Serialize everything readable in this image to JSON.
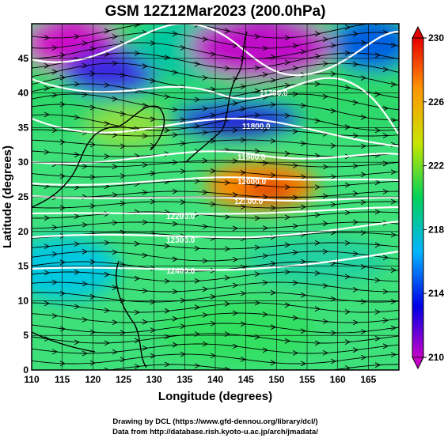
{
  "title": "GSM 12Z12Mar2023 (200.0hPa)",
  "x_axis": {
    "label": "Longitude (degrees)",
    "range": [
      110,
      170
    ],
    "ticks": [
      110,
      115,
      120,
      125,
      130,
      135,
      140,
      145,
      150,
      155,
      160,
      165
    ]
  },
  "y_axis": {
    "label": "Latitude (degrees)",
    "range": [
      0,
      50
    ],
    "ticks": [
      0,
      5,
      10,
      15,
      20,
      25,
      30,
      35,
      40,
      45
    ]
  },
  "colorbar": {
    "range": [
      210,
      230
    ],
    "labels": [
      210,
      214,
      218,
      222,
      226,
      230
    ],
    "colors": [
      "#c800c8",
      "#0000e6",
      "#00b4ff",
      "#00d25a",
      "#c8e600",
      "#ff9600",
      "#e60000"
    ]
  },
  "contours": [
    {
      "label": "11700.0"
    },
    {
      "label": "11800.0"
    },
    {
      "label": "11900.0"
    },
    {
      "label": "12000.0"
    },
    {
      "label": "12100.0"
    },
    {
      "label": "12200.0"
    },
    {
      "label": "12300.0"
    },
    {
      "label": "12400.0"
    }
  ],
  "credits": {
    "line1": "Drawing by DCL (https://www.gfd-dennou.org/library/dcl/)",
    "line2": "Data from http://database.rish.kyoto-u.ac.jp/arch/jmadata/"
  }
}
